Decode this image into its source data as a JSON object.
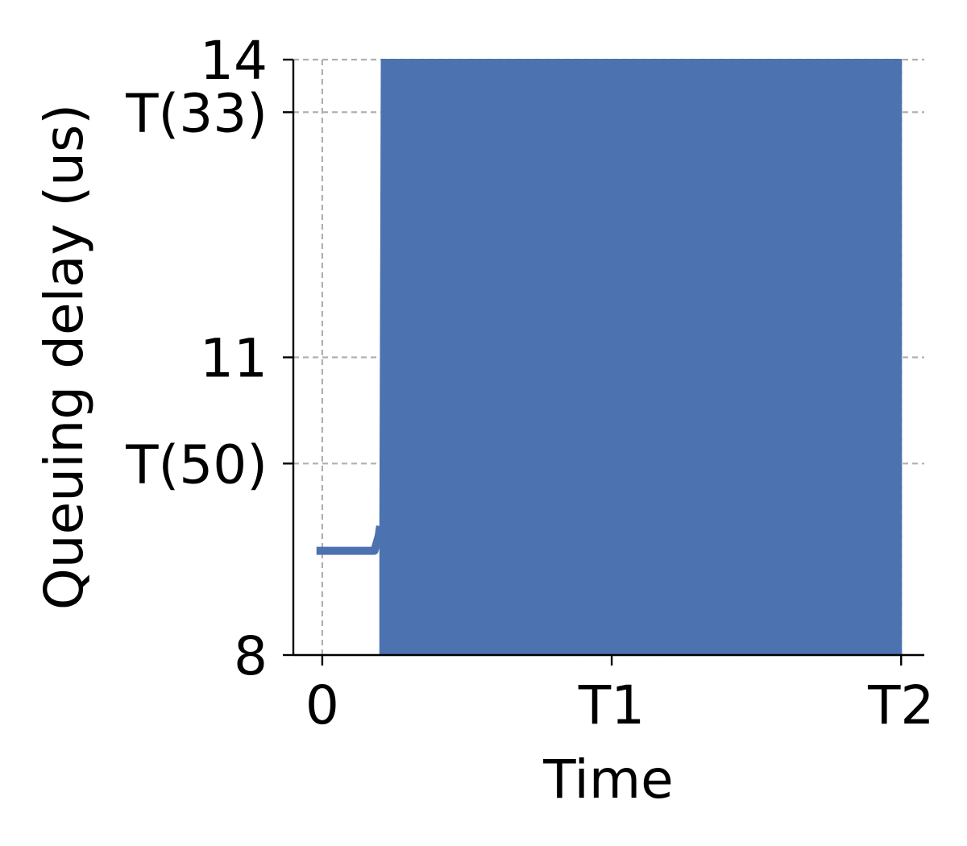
{
  "chart_data": {
    "type": "area",
    "xlabel": "Time",
    "ylabel": "Queuing delay (us)",
    "xlim": [
      -0.1,
      2.08
    ],
    "ylim": [
      8,
      14
    ],
    "x_ticks": [
      {
        "value": 0,
        "label": "0"
      },
      {
        "value": 1,
        "label": "T1"
      },
      {
        "value": 2,
        "label": "T2"
      }
    ],
    "y_ticks": [
      {
        "value": 8,
        "label": "8"
      },
      {
        "value": 9.93,
        "label": "T(50)"
      },
      {
        "value": 11,
        "label": "11"
      },
      {
        "value": 13.47,
        "label": "T(33)"
      },
      {
        "value": 14,
        "label": "14"
      }
    ],
    "grid": true,
    "color": "#4c72b0",
    "series": [
      {
        "kind": "line",
        "x": [
          -0.02,
          0.18,
          0.195,
          0.2
        ],
        "y": [
          9.05,
          9.05,
          9.2,
          9.3
        ]
      },
      {
        "kind": "filled-band",
        "x": [
          0.2,
          0.205,
          0.21,
          2.0
        ],
        "y_low": [
          8,
          8,
          8,
          8
        ],
        "y_high": [
          9.3,
          14,
          14,
          14
        ]
      }
    ]
  }
}
